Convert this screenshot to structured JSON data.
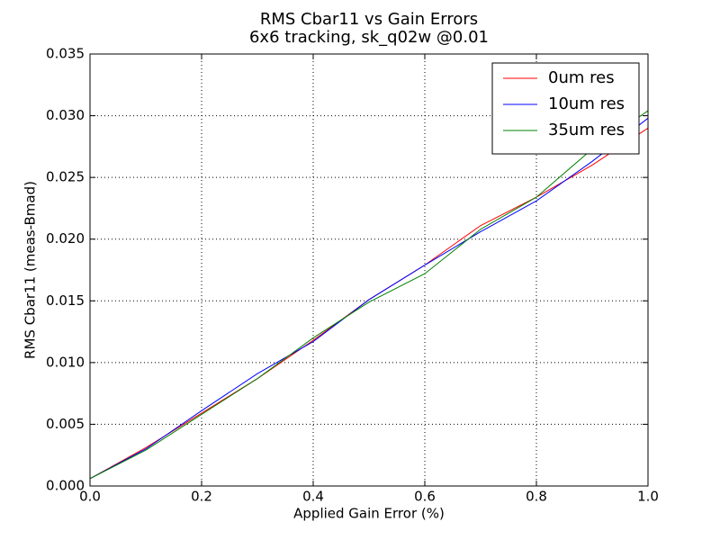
{
  "chart_data": {
    "type": "line",
    "title": "RMS Cbar11 vs Gain Errors",
    "subtitle": "6x6 tracking, sk_q02w @0.01",
    "x_label": "Applied Gain Error (%)",
    "y_label": "RMS Cbar11 (meas-Bmad)",
    "x": [
      0.0,
      0.1,
      0.2,
      0.3,
      0.4,
      0.5,
      0.6,
      0.7,
      0.8,
      0.9,
      1.0
    ],
    "series": [
      {
        "name": "0um res",
        "color": "#ff0000",
        "values": [
          0.0006,
          0.0031,
          0.0059,
          0.0087,
          0.0118,
          0.0151,
          0.0179,
          0.0211,
          0.0234,
          0.026,
          0.029
        ]
      },
      {
        "name": "10um res",
        "color": "#0000ff",
        "values": [
          0.0006,
          0.003,
          0.0061,
          0.0091,
          0.0117,
          0.0151,
          0.0179,
          0.0206,
          0.0231,
          0.0263,
          0.0298
        ]
      },
      {
        "name": "35um res",
        "color": "#008000",
        "values": [
          0.0006,
          0.0029,
          0.0058,
          0.0087,
          0.012,
          0.0149,
          0.0172,
          0.0208,
          0.0234,
          0.0273,
          0.0304
        ]
      }
    ],
    "xlim": [
      0,
      1
    ],
    "ylim": [
      0,
      0.035
    ],
    "xticks": [
      {
        "value": 0,
        "label": "0.0"
      },
      {
        "value": 0.2,
        "label": "0.2"
      },
      {
        "value": 0.4,
        "label": "0.4"
      },
      {
        "value": 0.6,
        "label": "0.6"
      },
      {
        "value": 0.8,
        "label": "0.8"
      },
      {
        "value": 1,
        "label": "1.0"
      }
    ],
    "yticks": [
      {
        "value": 0,
        "label": "0.000"
      },
      {
        "value": 0.005,
        "label": "0.005"
      },
      {
        "value": 0.01,
        "label": "0.010"
      },
      {
        "value": 0.015,
        "label": "0.015"
      },
      {
        "value": 0.02,
        "label": "0.020"
      },
      {
        "value": 0.025,
        "label": "0.025"
      },
      {
        "value": 0.03,
        "label": "0.030"
      },
      {
        "value": 0.035,
        "label": "0.035"
      }
    ],
    "grid": true,
    "legend": "upper right"
  }
}
